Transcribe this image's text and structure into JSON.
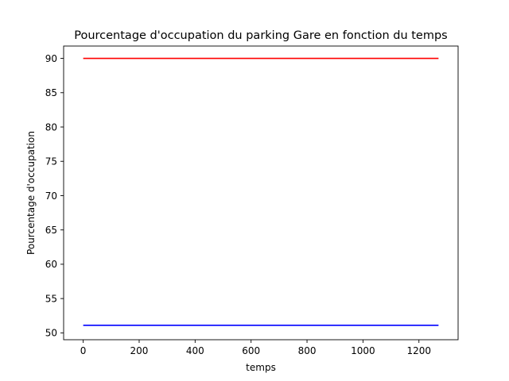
{
  "chart_data": {
    "type": "line",
    "title": "Pourcentage d'occupation du parking Gare en fonction du temps",
    "xlabel": "temps",
    "ylabel": "Pourcentage d'occupation",
    "xlim": [
      -70,
      1340
    ],
    "ylim": [
      49,
      91.8
    ],
    "xticks": [
      0,
      200,
      400,
      600,
      800,
      1000,
      1200
    ],
    "yticks": [
      50,
      55,
      60,
      65,
      70,
      75,
      80,
      85,
      90
    ],
    "grid": false,
    "series": [
      {
        "color": "#ff0000",
        "x": [
          0,
          1270
        ],
        "y": [
          90,
          90
        ]
      },
      {
        "color": "#0000ff",
        "x": [
          0,
          1270
        ],
        "y": [
          51.1,
          51.1
        ]
      }
    ]
  }
}
